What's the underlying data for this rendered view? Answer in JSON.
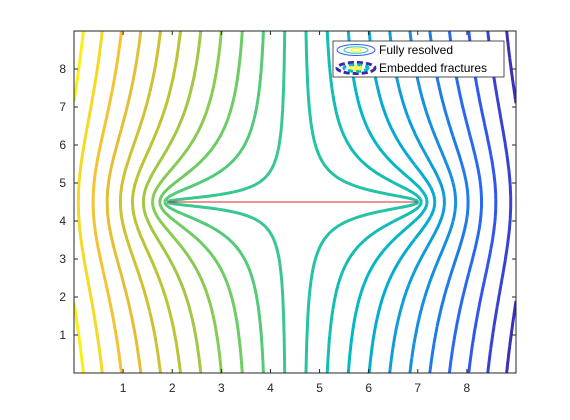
{
  "chart_data": {
    "type": "line",
    "title": "",
    "xlabel": "",
    "ylabel": "",
    "xlim": [
      0,
      9
    ],
    "ylim": [
      0,
      9
    ],
    "x_ticks": [
      1,
      2,
      3,
      4,
      5,
      6,
      7,
      8
    ],
    "y_ticks": [
      1,
      2,
      3,
      4,
      5,
      6,
      7,
      8
    ],
    "grid": false,
    "legend_position": "top-right",
    "legend": [
      {
        "label": "Fully resolved",
        "style": "solid-thin"
      },
      {
        "label": "Embedded fractures",
        "style": "dashed-thick"
      }
    ],
    "fracture": {
      "x": [
        1.9,
        7.0
      ],
      "y": [
        4.5,
        4.5
      ],
      "color": "#d62728"
    },
    "contour_levels": 22,
    "colormap": [
      "#3e26a8",
      "#2f5bf5",
      "#168ee1",
      "#01b6c9",
      "#2cc69b",
      "#74cd5e",
      "#bdc432",
      "#f2bd37",
      "#f9fb0e"
    ],
    "series": [
      {
        "name": "Fully resolved",
        "values": "contour lines of the same field, thin solid"
      },
      {
        "name": "Embedded fractures",
        "values": "contour lines of the same field, thick dashed"
      }
    ]
  }
}
